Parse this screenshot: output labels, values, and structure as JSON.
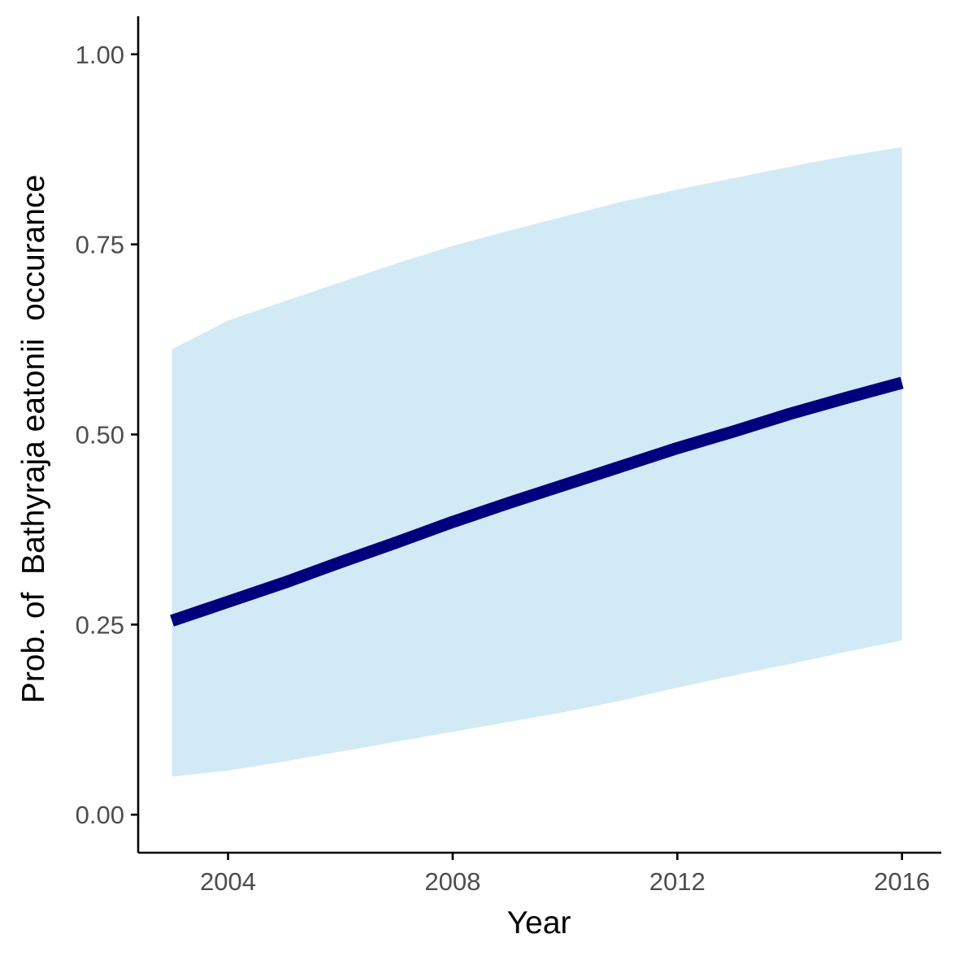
{
  "chart_data": {
    "type": "line",
    "xlabel": "Year",
    "ylabel": "Prob. of  Bathyraja eatonii  occurance",
    "xlim": [
      2002.4,
      2016.7
    ],
    "ylim": [
      -0.05,
      1.05
    ],
    "x_ticks": [
      2004,
      2008,
      2012,
      2016
    ],
    "x_tick_labels": [
      "2004",
      "2008",
      "2012",
      "2016"
    ],
    "y_ticks": [
      0.0,
      0.25,
      0.5,
      0.75,
      1.0
    ],
    "y_tick_labels": [
      "0.00",
      "0.25",
      "0.50",
      "0.75",
      "1.00"
    ],
    "grid": false,
    "legend": "none",
    "series": [
      {
        "x": [
          2003,
          2004,
          2005,
          2006,
          2007,
          2008,
          2009,
          2010,
          2011,
          2012,
          2013,
          2014,
          2015,
          2016
        ],
        "y": [
          0.255,
          0.28,
          0.305,
          0.332,
          0.358,
          0.385,
          0.41,
          0.434,
          0.458,
          0.482,
          0.504,
          0.527,
          0.548,
          0.568
        ],
        "lower": [
          0.05,
          0.058,
          0.07,
          0.083,
          0.096,
          0.109,
          0.122,
          0.135,
          0.15,
          0.167,
          0.183,
          0.198,
          0.214,
          0.229
        ],
        "upper": [
          0.612,
          0.65,
          0.675,
          0.7,
          0.725,
          0.748,
          0.768,
          0.787,
          0.806,
          0.822,
          0.837,
          0.852,
          0.866,
          0.878
        ]
      }
    ],
    "colors": {
      "line": "#00007f",
      "ribbon": "#d2eaf6"
    }
  }
}
